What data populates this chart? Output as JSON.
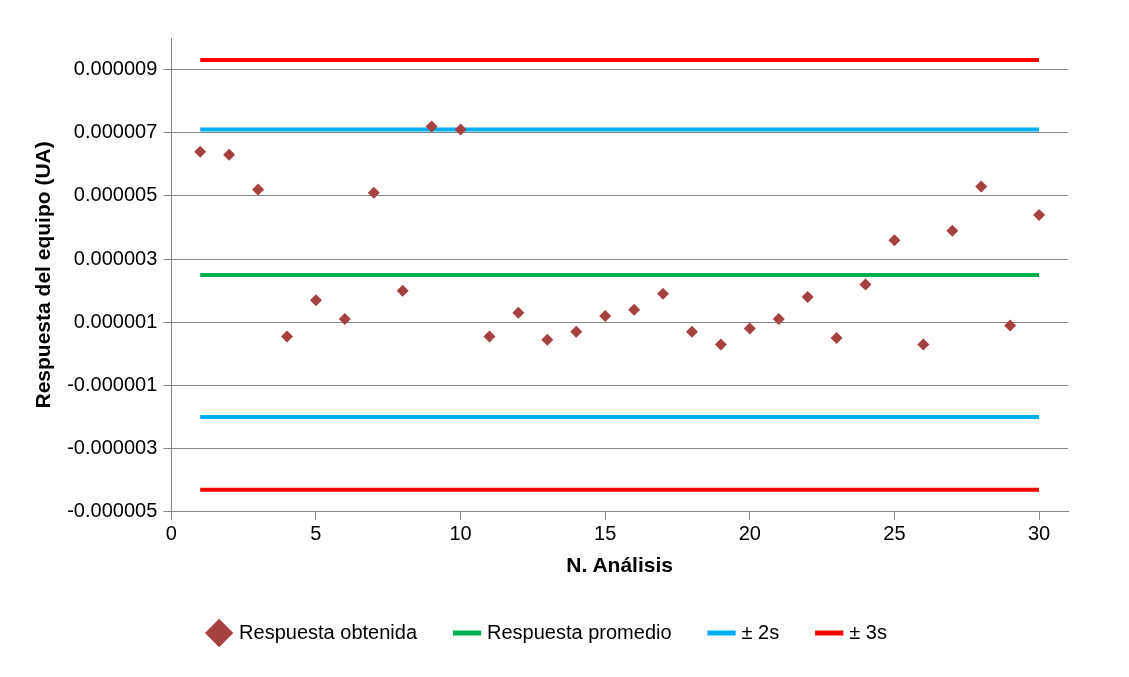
{
  "chart_data": {
    "type": "scatter",
    "xlabel": "N. Análisis",
    "ylabel": "Respuesta del equipo (UA)",
    "xlim": [
      0,
      31
    ],
    "xticks": [
      0,
      5,
      10,
      15,
      20,
      25,
      30
    ],
    "ylim": [
      -5e-06,
      1e-05
    ],
    "yticks": [
      {
        "value": -5e-06,
        "label": "-0.000005"
      },
      {
        "value": -3e-06,
        "label": "-0.000003"
      },
      {
        "value": -1e-06,
        "label": "-0.000001"
      },
      {
        "value": 1e-06,
        "label": "0.000001"
      },
      {
        "value": 3e-06,
        "label": "0.000003"
      },
      {
        "value": 5e-06,
        "label": "0.000005"
      },
      {
        "value": 7e-06,
        "label": "0.000007"
      },
      {
        "value": 9e-06,
        "label": "0.000009"
      }
    ],
    "grid": "y",
    "legend": "bottom",
    "x": [
      1,
      2,
      3,
      4,
      5,
      6,
      7,
      8,
      9,
      10,
      11,
      12,
      13,
      14,
      15,
      16,
      17,
      18,
      19,
      20,
      21,
      22,
      23,
      24,
      25,
      26,
      27,
      28,
      29,
      30
    ],
    "series": [
      {
        "name": "Respuesta obtenida",
        "type": "scatter",
        "marker": "diamond",
        "color": "#a5413e",
        "values": [
          6.4e-06,
          6.3e-06,
          5.2e-06,
          5.5e-07,
          1.7e-06,
          1.1e-06,
          5.1e-06,
          2e-06,
          7.2e-06,
          7.1e-06,
          5.5e-07,
          1.3e-06,
          4.5e-07,
          7e-07,
          1.2e-06,
          1.4e-06,
          1.9e-06,
          7e-07,
          3e-07,
          8e-07,
          1.1e-06,
          1.8e-06,
          5e-07,
          2.2e-06,
          3.6e-06,
          3e-07,
          3.9e-06,
          5.3e-06,
          9e-07,
          4.4e-06
        ]
      },
      {
        "name": "Respuesta promedio",
        "type": "line",
        "marker": "none",
        "color": "#00b050",
        "values": [
          2.5e-06,
          2.5e-06,
          2.5e-06,
          2.5e-06,
          2.5e-06,
          2.5e-06,
          2.5e-06,
          2.5e-06,
          2.5e-06,
          2.5e-06,
          2.5e-06,
          2.5e-06,
          2.5e-06,
          2.5e-06,
          2.5e-06,
          2.5e-06,
          2.5e-06,
          2.5e-06,
          2.5e-06,
          2.5e-06,
          2.5e-06,
          2.5e-06,
          2.5e-06,
          2.5e-06,
          2.5e-06,
          2.5e-06,
          2.5e-06,
          2.5e-06,
          2.5e-06,
          2.5e-06
        ]
      },
      {
        "name": "± 2s",
        "type": "line",
        "marker": "none",
        "color": "#00b0f0",
        "values": [
          7.1e-06,
          7.1e-06,
          7.1e-06,
          7.1e-06,
          7.1e-06,
          7.1e-06,
          7.1e-06,
          7.1e-06,
          7.1e-06,
          7.1e-06,
          7.1e-06,
          7.1e-06,
          7.1e-06,
          7.1e-06,
          7.1e-06,
          7.1e-06,
          7.1e-06,
          7.1e-06,
          7.1e-06,
          7.1e-06,
          7.1e-06,
          7.1e-06,
          7.1e-06,
          7.1e-06,
          7.1e-06,
          7.1e-06,
          7.1e-06,
          7.1e-06,
          7.1e-06,
          7.1e-06
        ]
      },
      {
        "type": "line",
        "marker": "none",
        "color": "#00b0f0",
        "values": [
          -2e-06,
          -2e-06,
          -2e-06,
          -2e-06,
          -2e-06,
          -2e-06,
          -2e-06,
          -2e-06,
          -2e-06,
          -2e-06,
          -2e-06,
          -2e-06,
          -2e-06,
          -2e-06,
          -2e-06,
          -2e-06,
          -2e-06,
          -2e-06,
          -2e-06,
          -2e-06,
          -2e-06,
          -2e-06,
          -2e-06,
          -2e-06,
          -2e-06,
          -2e-06,
          -2e-06,
          -2e-06,
          -2e-06,
          -2e-06
        ]
      },
      {
        "name": "± 3s",
        "type": "line",
        "marker": "none",
        "color": "#ff0000",
        "values": [
          9.3e-06,
          9.3e-06,
          9.3e-06,
          9.3e-06,
          9.3e-06,
          9.3e-06,
          9.3e-06,
          9.3e-06,
          9.3e-06,
          9.3e-06,
          9.3e-06,
          9.3e-06,
          9.3e-06,
          9.3e-06,
          9.3e-06,
          9.3e-06,
          9.3e-06,
          9.3e-06,
          9.3e-06,
          9.3e-06,
          9.3e-06,
          9.3e-06,
          9.3e-06,
          9.3e-06,
          9.3e-06,
          9.3e-06,
          9.3e-06,
          9.3e-06,
          9.3e-06,
          9.3e-06
        ]
      },
      {
        "type": "line",
        "marker": "none",
        "color": "#ff0000",
        "values": [
          -4.3e-06,
          -4.3e-06,
          -4.3e-06,
          -4.3e-06,
          -4.3e-06,
          -4.3e-06,
          -4.3e-06,
          -4.3e-06,
          -4.3e-06,
          -4.3e-06,
          -4.3e-06,
          -4.3e-06,
          -4.3e-06,
          -4.3e-06,
          -4.3e-06,
          -4.3e-06,
          -4.3e-06,
          -4.3e-06,
          -4.3e-06,
          -4.3e-06,
          -4.3e-06,
          -4.3e-06,
          -4.3e-06,
          -4.3e-06,
          -4.3e-06,
          -4.3e-06,
          -4.3e-06,
          -4.3e-06,
          -4.3e-06,
          -4.3e-06
        ]
      }
    ]
  }
}
